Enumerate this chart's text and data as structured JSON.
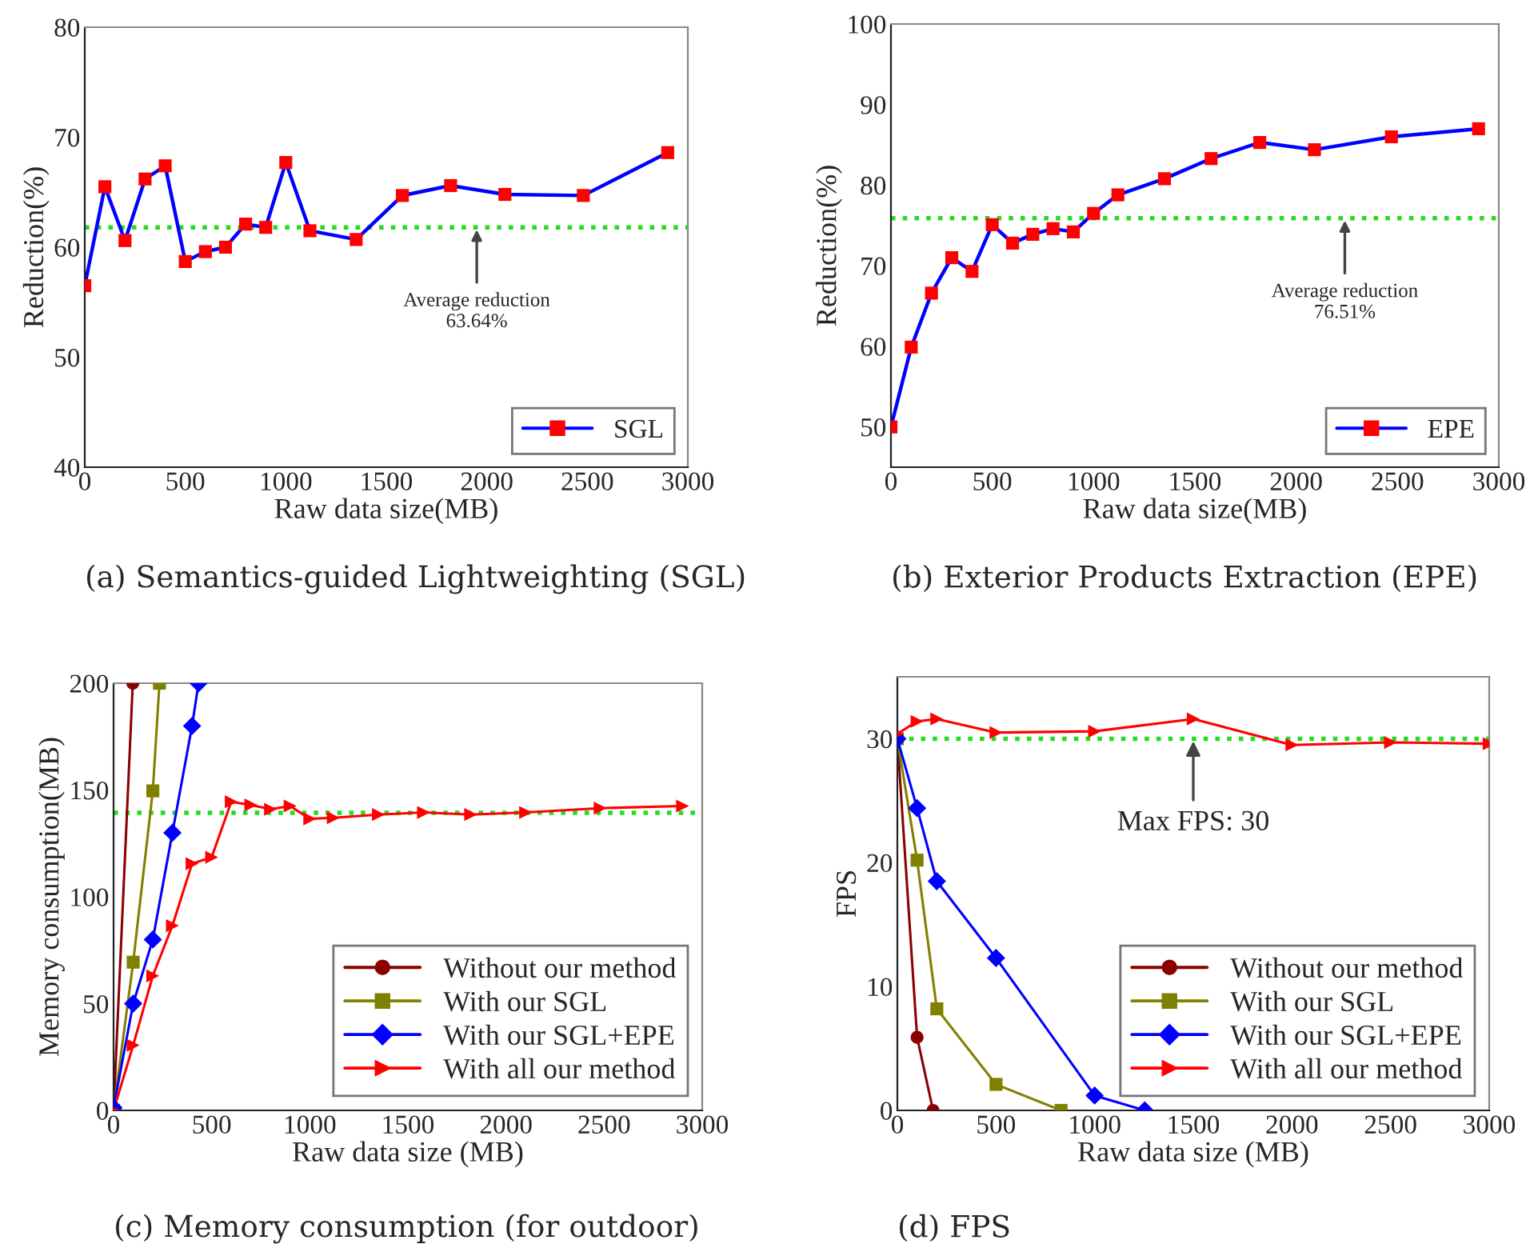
{
  "chart_data": [
    {
      "type": "line",
      "xlabel": "Raw data size(MB)",
      "ylabel": "Reduction(%)",
      "xlim": [
        0,
        3000
      ],
      "xticks": [
        0,
        500,
        1000,
        1500,
        2000,
        2500,
        3000
      ],
      "ylim": [
        40,
        80
      ],
      "yticks": [
        40,
        50,
        60,
        70,
        80
      ],
      "legend": "bottom right",
      "series": [
        {
          "name": "SGL",
          "color": "#0000ff",
          "marker": "square",
          "colors": [
            "#ff0000",
            "#ff0000",
            "#ff0000",
            "#ff0000",
            "#ff0000",
            "#ff0000",
            "#ff0000",
            "#ff0000",
            "#ff0000",
            "#ff0000",
            "#ff0000",
            "#ff0000",
            "#ff0000",
            "#ff0000",
            "#ff0000",
            "#ff0000",
            "#ff0000",
            "#ff0000"
          ],
          "x": [
            0,
            100,
            200,
            300,
            400,
            500,
            600,
            700,
            800,
            900,
            1000,
            1120,
            1350,
            1580,
            1820,
            2090,
            2480,
            2900
          ],
          "values": [
            56.5,
            65.5,
            60.6,
            66.2,
            67.4,
            58.7,
            59.6,
            60.0,
            62.1,
            61.8,
            67.7,
            61.5,
            60.7,
            64.7,
            65.6,
            64.8,
            64.7,
            68.6
          ]
        }
      ],
      "ref_lines": [
        {
          "axis": "y",
          "value": 61.8,
          "color": "#22dd22",
          "line_style": "dotted"
        }
      ],
      "annotations": [
        {
          "text": "Average reduction\n63.64%",
          "x": 1950,
          "y": 61.8
        },
        "(a) Semantics-guided Lightweighting (SGL)"
      ]
    },
    {
      "type": "line",
      "xlabel": "Raw data size(MB)",
      "ylabel": "Reduction(%)",
      "xlim": [
        0,
        3000
      ],
      "xticks": [
        0,
        500,
        1000,
        1500,
        2000,
        2500,
        3000
      ],
      "ylim": [
        45,
        100
      ],
      "yticks": [
        50,
        60,
        70,
        80,
        90,
        100
      ],
      "legend": "bottom right",
      "series": [
        {
          "name": "EPE",
          "color": "#0000ff",
          "marker": "square",
          "colors": [
            "#ff0000",
            "#ff0000",
            "#ff0000",
            "#ff0000",
            "#ff0000",
            "#ff0000",
            "#ff0000",
            "#ff0000",
            "#ff0000",
            "#ff0000",
            "#ff0000",
            "#ff0000",
            "#ff0000",
            "#ff0000",
            "#ff0000",
            "#ff0000",
            "#ff0000",
            "#ff0000"
          ],
          "x": [
            0,
            100,
            200,
            300,
            400,
            500,
            600,
            700,
            800,
            900,
            1000,
            1120,
            1350,
            1580,
            1820,
            2090,
            2470,
            2900
          ],
          "values": [
            50,
            59.9,
            66.6,
            71.0,
            69.3,
            75.1,
            72.8,
            73.9,
            74.6,
            74.2,
            76.5,
            78.8,
            80.8,
            83.3,
            85.3,
            84.4,
            86.0,
            87.0
          ]
        }
      ],
      "ref_lines": [
        {
          "axis": "y",
          "value": 75.9,
          "color": "#22dd22",
          "line_style": "dotted"
        }
      ],
      "annotations": [
        {
          "text": "Average reduction\n76.51%",
          "x": 2240,
          "y": 75.9
        },
        "(b) Exterior Products Extraction (EPE)"
      ]
    },
    {
      "type": "line",
      "xlabel": "Raw data size (MB)",
      "ylabel": "Memory consumption(MB)",
      "xlim": [
        0,
        3000
      ],
      "xticks": [
        0,
        500,
        1000,
        1500,
        2000,
        2500,
        3000
      ],
      "ylim": [
        0,
        200
      ],
      "yticks": [
        0,
        50,
        100,
        150,
        200
      ],
      "legend": "bottom right",
      "series": [
        {
          "name": "Without our method",
          "color": "#8b0000",
          "marker": "circle",
          "x": [
            0,
            98
          ],
          "values": [
            0,
            200
          ]
        },
        {
          "name": "With our SGL",
          "color": "#808000",
          "marker": "square",
          "x": [
            0,
            100,
            200,
            234
          ],
          "values": [
            0,
            69.4,
            149.6,
            200
          ]
        },
        {
          "name": "With our SGL+EPE",
          "color": "#0000ff",
          "marker": "diamond",
          "x": [
            0,
            100,
            200,
            300,
            400,
            433
          ],
          "values": [
            1.2,
            50,
            80,
            130,
            180,
            200
          ]
        },
        {
          "name": "With all our method",
          "color": "#ff0000",
          "marker": "triangle",
          "x": [
            0,
            100,
            200,
            300,
            400,
            500,
            600,
            700,
            800,
            900,
            1000,
            1120,
            1350,
            1580,
            1820,
            2100,
            2480,
            2900
          ],
          "values": [
            0,
            30.5,
            63,
            86.5,
            115.5,
            118.5,
            144.5,
            143,
            141,
            142.5,
            136.5,
            137,
            138.5,
            139.5,
            138.5,
            139.5,
            141.5,
            142.5
          ]
        }
      ],
      "ref_lines": [
        {
          "axis": "y",
          "value": 139.3,
          "color": "#22dd22",
          "line_style": "dotted"
        }
      ],
      "annotations": [
        "(c) Memory consumption (for outdoor)"
      ]
    },
    {
      "type": "line",
      "xlabel": "Raw data size (MB)",
      "ylabel": "FPS",
      "xlim": [
        0,
        3000
      ],
      "xticks": [
        0,
        500,
        1000,
        1500,
        2000,
        2500,
        3000
      ],
      "ylim": [
        0,
        35
      ],
      "yticks": [
        0,
        10,
        20,
        30
      ],
      "legend": "bottom right",
      "series": [
        {
          "name": "Without our method",
          "color": "#8b0000",
          "marker": "circle",
          "x": [
            0,
            100,
            181
          ],
          "values": [
            30,
            5.9,
            0
          ]
        },
        {
          "name": "With our SGL",
          "color": "#808000",
          "marker": "square",
          "x": [
            0,
            100,
            200,
            500,
            830
          ],
          "values": [
            30,
            20.2,
            8.2,
            2.1,
            0
          ]
        },
        {
          "name": "With our SGL+EPE",
          "color": "#0000ff",
          "marker": "diamond",
          "x": [
            0,
            100,
            200,
            500,
            1000,
            1254
          ],
          "values": [
            30,
            24.4,
            18.5,
            12.3,
            1.2,
            0
          ]
        },
        {
          "name": "With all our method",
          "color": "#ff0000",
          "marker": "triangle",
          "x": [
            0,
            100,
            200,
            500,
            1000,
            1500,
            2000,
            2500,
            3000
          ],
          "values": [
            30.4,
            31.4,
            31.6,
            30.5,
            30.6,
            31.6,
            29.5,
            29.7,
            29.6
          ]
        }
      ],
      "ref_lines": [
        {
          "axis": "y",
          "value": 30,
          "color": "#22dd22",
          "line_style": "dotted"
        }
      ],
      "annotations": [
        {
          "text": "Max FPS: 30",
          "x": 1500,
          "y": 30
        },
        "(d) FPS"
      ]
    }
  ]
}
